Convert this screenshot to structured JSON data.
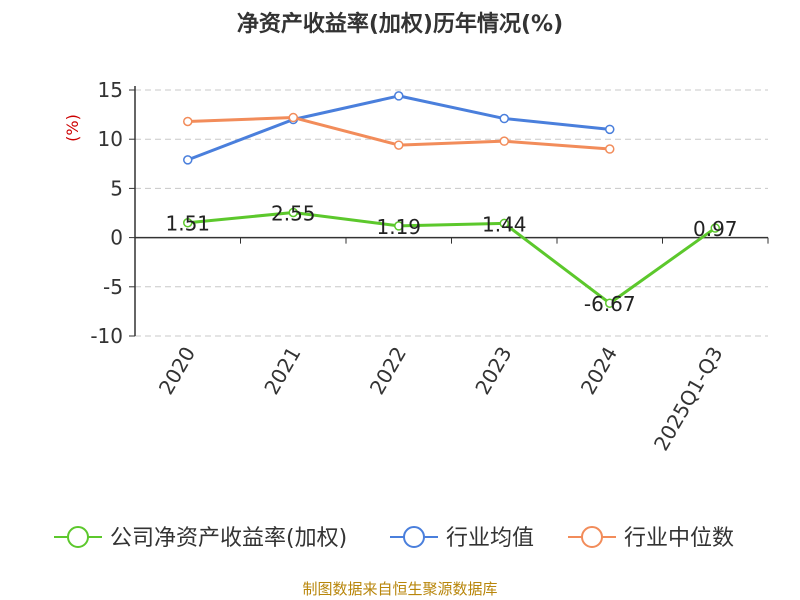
{
  "chart_data": {
    "type": "line",
    "title": "净资产收益率(加权)历年情况(%)",
    "ylabel": "(%)",
    "xlabel": "",
    "categories": [
      "2020",
      "2021",
      "2022",
      "2023",
      "2024",
      "2025Q1-Q3"
    ],
    "ylim": [
      -10,
      15
    ],
    "yticks": [
      -10,
      -5,
      0,
      5,
      10,
      15
    ],
    "grid": true,
    "legend_position": "bottom",
    "series": [
      {
        "name": "公司净资产收益率(加权)",
        "color": "#5cc82c",
        "values": [
          1.51,
          2.55,
          1.19,
          1.44,
          -6.67,
          0.97
        ],
        "labels": [
          "1.51",
          "2.55",
          "1.19",
          "1.44",
          "-6.67",
          "0.97"
        ]
      },
      {
        "name": "行业均值",
        "color": "#4a7fdc",
        "values": [
          7.9,
          12.0,
          14.4,
          12.1,
          11.0,
          null
        ]
      },
      {
        "name": "行业中位数",
        "color": "#f28c5a",
        "values": [
          11.8,
          12.2,
          9.4,
          9.8,
          9.0,
          null
        ]
      }
    ]
  },
  "source": "制图数据来自恒生聚源数据库"
}
